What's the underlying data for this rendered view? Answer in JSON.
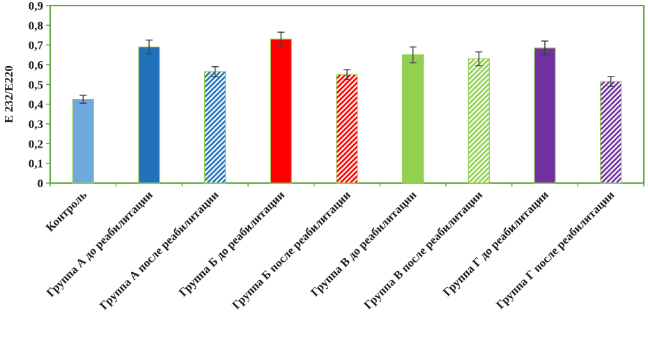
{
  "chart_data": {
    "type": "bar",
    "title": "",
    "xlabel": "",
    "ylabel": "Е 232/Е220",
    "ylim": [
      0,
      0.9
    ],
    "ytick_labels": [
      "0",
      "0,1",
      "0,2",
      "0,3",
      "0,4",
      "0,5",
      "0,6",
      "0,7",
      "0,8",
      "0,9"
    ],
    "grid": false,
    "legend": "none",
    "axis_color": "#5FA73A",
    "bar_outline_color": "#92D050",
    "error_bar_color": "#404040",
    "categories": [
      "Контроль",
      "Группа А до реабилитации",
      "Группа А после реабилитации",
      "Группа Б до реабилитации",
      "Группа Б после реабилитации",
      "Группа В до реабилитации",
      "Группа В после реабилитации",
      "Группа Г до реабилитации",
      "Группа Г после реабилитации"
    ],
    "values": [
      0.425,
      0.69,
      0.565,
      0.73,
      0.55,
      0.65,
      0.63,
      0.685,
      0.515
    ],
    "errors": [
      0.02,
      0.035,
      0.025,
      0.035,
      0.025,
      0.04,
      0.035,
      0.035,
      0.025
    ],
    "bars": [
      {
        "label": "Контроль",
        "value": 0.425,
        "error": 0.02,
        "color": "#6FA8DC",
        "hatch": false
      },
      {
        "label": "Группа А до реабилитации",
        "value": 0.69,
        "error": 0.035,
        "color": "#2172BA",
        "hatch": false
      },
      {
        "label": "Группа А после реабилитации",
        "value": 0.565,
        "error": 0.025,
        "color": "#2172BA",
        "hatch": true
      },
      {
        "label": "Группа Б до реабилитации",
        "value": 0.73,
        "error": 0.035,
        "color": "#FF0000",
        "hatch": false
      },
      {
        "label": "Группа Б после реабилитации",
        "value": 0.55,
        "error": 0.025,
        "color": "#FF0000",
        "hatch": true
      },
      {
        "label": "Группа В до реабилитации",
        "value": 0.65,
        "error": 0.04,
        "color": "#92D050",
        "hatch": false
      },
      {
        "label": "Группа В после реабилитации",
        "value": 0.63,
        "error": 0.035,
        "color": "#92D050",
        "hatch": true
      },
      {
        "label": "Группа Г до реабилитации",
        "value": 0.685,
        "error": 0.035,
        "color": "#7030A0",
        "hatch": false
      },
      {
        "label": "Группа Г после реабилитации",
        "value": 0.515,
        "error": 0.025,
        "color": "#7030A0",
        "hatch": true
      }
    ]
  }
}
